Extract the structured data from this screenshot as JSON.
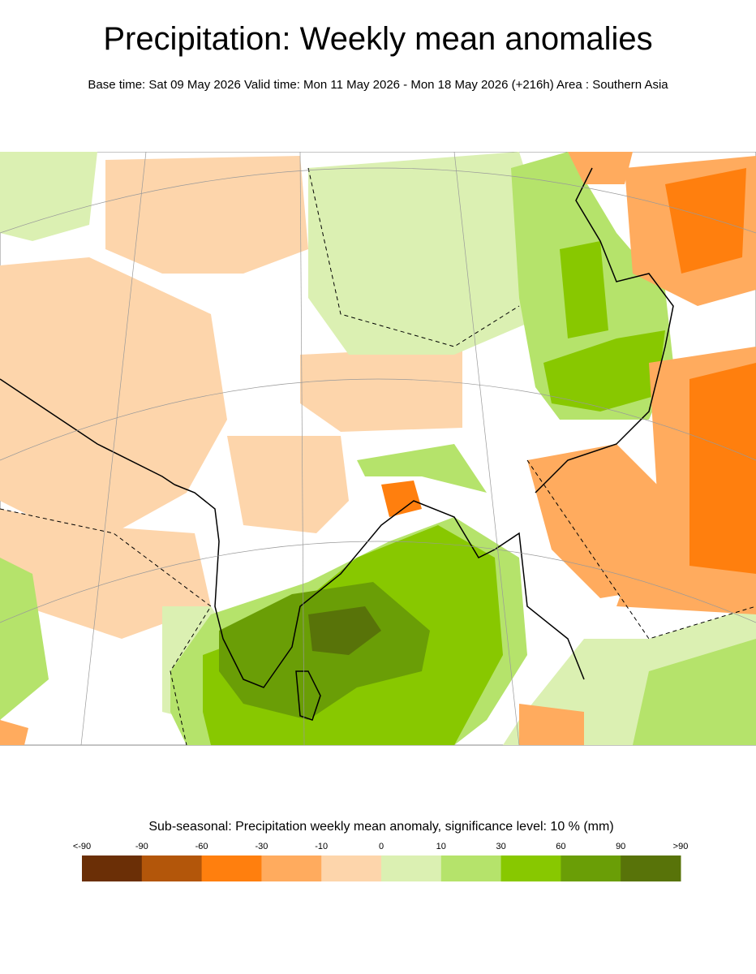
{
  "title": "Precipitation: Weekly mean anomalies",
  "subtitle": "Base time: Sat 09 May 2026 Valid time: Mon 11 May 2026 - Mon 18 May 2026 (+216h) Area : Southern Asia",
  "legend": {
    "title": "Sub-seasonal: Precipitation weekly mean anomaly, significance level: 10 % (mm)",
    "labels": [
      "<-90",
      "-90",
      "-60",
      "-30",
      "-10",
      "0",
      "10",
      "30",
      "60",
      "90",
      ">90"
    ],
    "colors": [
      "#6b2f06",
      "#b3560a",
      "#ff7f0e",
      "#ffab5e",
      "#fdd5ab",
      "#dbf0b2",
      "#b5e36b",
      "#88c800",
      "#6a9e06",
      "#587309"
    ]
  }
}
